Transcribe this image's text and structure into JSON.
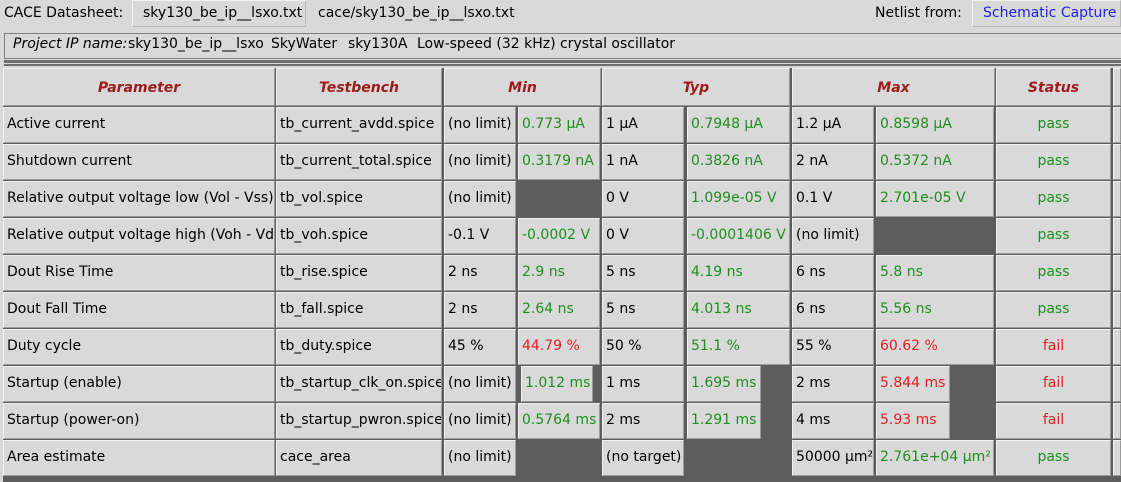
{
  "topbar": {
    "datasheet_label": "CACE Datasheet:",
    "datasheet_file": "sky130_be_ip__lsxo.txt",
    "datasheet_path": "cace/sky130_be_ip__lsxo.txt",
    "netlist_label": "Netlist from:",
    "netlist_source": "Schematic Capture"
  },
  "project": {
    "label": "Project IP name:",
    "name": "sky130_be_ip__lsxo",
    "vendor": "SkyWater",
    "process": "sky130A",
    "description": "Low-speed (32 kHz) crystal oscillator"
  },
  "table": {
    "headers": [
      "Parameter",
      "Testbench",
      "Min",
      "Typ",
      "Max",
      "Status"
    ],
    "rows": [
      {
        "param": "Active current",
        "tb": "tb_current_avdd.spice",
        "min_spec": "(no limit)",
        "min_val": "0.773 µA",
        "min_status": "pass",
        "typ_spec": "1 µA",
        "typ_val": "0.7948 µA",
        "typ_status": "pass",
        "max_spec": "1.2 µA",
        "max_val": "0.8598 µA",
        "max_status": "pass",
        "status": "pass"
      },
      {
        "param": "Shutdown current",
        "tb": "tb_current_total.spice",
        "min_spec": "(no limit)",
        "min_val": "0.3179 nA",
        "min_status": "pass",
        "typ_spec": "1 nA",
        "typ_val": "0.3826 nA",
        "typ_status": "pass",
        "max_spec": "2 nA",
        "max_val": "0.5372 nA",
        "max_status": "pass",
        "status": "pass"
      },
      {
        "param": "Relative output voltage low (Vol - Vss)",
        "tb": "tb_vol.spice",
        "min_spec": "(no limit)",
        "min_val": "",
        "min_status": "none",
        "typ_spec": "0 V",
        "typ_val": "1.099e-05 V",
        "typ_status": "pass",
        "max_spec": "0.1 V",
        "max_val": "2.701e-05 V",
        "max_status": "pass",
        "status": "pass"
      },
      {
        "param": "Relative output voltage high (Voh - Vdd)",
        "tb": "tb_voh.spice",
        "min_spec": "-0.1 V",
        "min_val": "-0.0002 V",
        "min_status": "pass",
        "typ_spec": "0 V",
        "typ_val": "-0.0001406 V",
        "typ_status": "pass",
        "max_spec": "(no limit)",
        "max_val": "",
        "max_status": "none",
        "status": "pass"
      },
      {
        "param": "Dout Rise Time",
        "tb": "tb_rise.spice",
        "min_spec": "2 ns",
        "min_val": "2.9 ns",
        "min_status": "pass",
        "typ_spec": "5 ns",
        "typ_val": "4.19 ns",
        "typ_status": "pass",
        "max_spec": "6 ns",
        "max_val": "5.8 ns",
        "max_status": "pass",
        "status": "pass"
      },
      {
        "param": "Dout Fall Time",
        "tb": "tb_fall.spice",
        "min_spec": "2 ns",
        "min_val": "2.64 ns",
        "min_status": "pass",
        "typ_spec": "5 ns",
        "typ_val": "4.013 ns",
        "typ_status": "pass",
        "max_spec": "6 ns",
        "max_val": "5.56 ns",
        "max_status": "pass",
        "status": "pass"
      },
      {
        "param": "Duty cycle",
        "tb": "tb_duty.spice",
        "min_spec": "45 %",
        "min_val": "44.79 %",
        "min_status": "fail",
        "typ_spec": "50 %",
        "typ_val": "51.1 %",
        "typ_status": "pass",
        "max_spec": "55 %",
        "max_val": "60.62 %",
        "max_status": "fail",
        "status": "fail"
      },
      {
        "param": "Startup (enable)",
        "tb": "tb_startup_clk_on.spice",
        "min_spec": "(no limit)",
        "min_val": "1.012 ms",
        "min_status": "pass",
        "typ_spec": "1 ms",
        "typ_val": "1.695 ms",
        "typ_status": "pass",
        "max_spec": "2 ms",
        "max_val": "5.844 ms",
        "max_status": "fail",
        "status": "fail"
      },
      {
        "param": "Startup (power-on)",
        "tb": "tb_startup_pwron.spice",
        "min_spec": "(no limit)",
        "min_val": "0.5764 ms",
        "min_status": "pass",
        "typ_spec": "2 ms",
        "typ_val": "1.291 ms",
        "typ_status": "pass",
        "max_spec": "4 ms",
        "max_val": "5.93 ms",
        "max_status": "fail",
        "status": "fail"
      },
      {
        "param": "Area estimate",
        "tb": "cace_area",
        "min_spec": "(no limit)",
        "min_val": "",
        "min_status": "none",
        "typ_spec": "(no target)",
        "typ_val": "",
        "typ_status": "none",
        "max_spec": "50000 µm²",
        "max_val": "2.761e+04 µm²",
        "max_status": "pass",
        "status": "pass"
      }
    ]
  },
  "colors": {
    "pass": "#1d8f1d",
    "fail": "#e01f1f",
    "header": "#9e1b1b",
    "link": "#1f1fe0"
  }
}
